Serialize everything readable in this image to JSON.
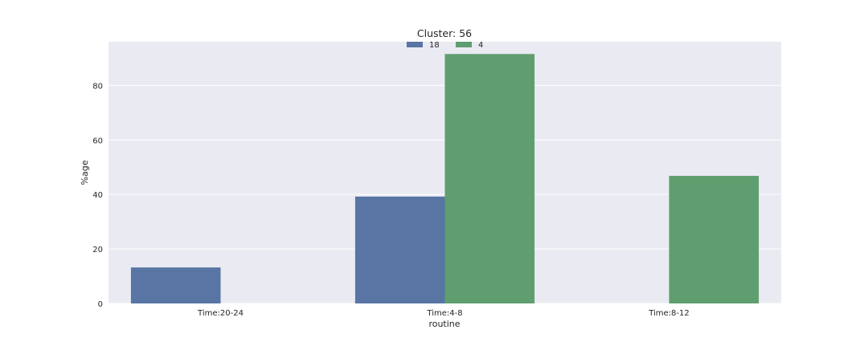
{
  "chart_data": {
    "type": "bar",
    "title": "Cluster: 56",
    "xlabel": "routine",
    "ylabel": "%age",
    "categories": [
      "Time:20-24",
      "Time:4-8",
      "Time:8-12"
    ],
    "series": [
      {
        "name": "18",
        "values": [
          13.2,
          39.2,
          null
        ],
        "color": "#5875a4"
      },
      {
        "name": "4",
        "values": [
          null,
          91.5,
          46.8
        ],
        "color": "#5f9e6e"
      }
    ],
    "ylim": [
      0,
      96
    ],
    "yticks": [
      0,
      20,
      40,
      60,
      80
    ],
    "grid": true,
    "legend_position": "top-center",
    "background_color": "#eaeaf2",
    "grid_color": "#ffffff"
  }
}
